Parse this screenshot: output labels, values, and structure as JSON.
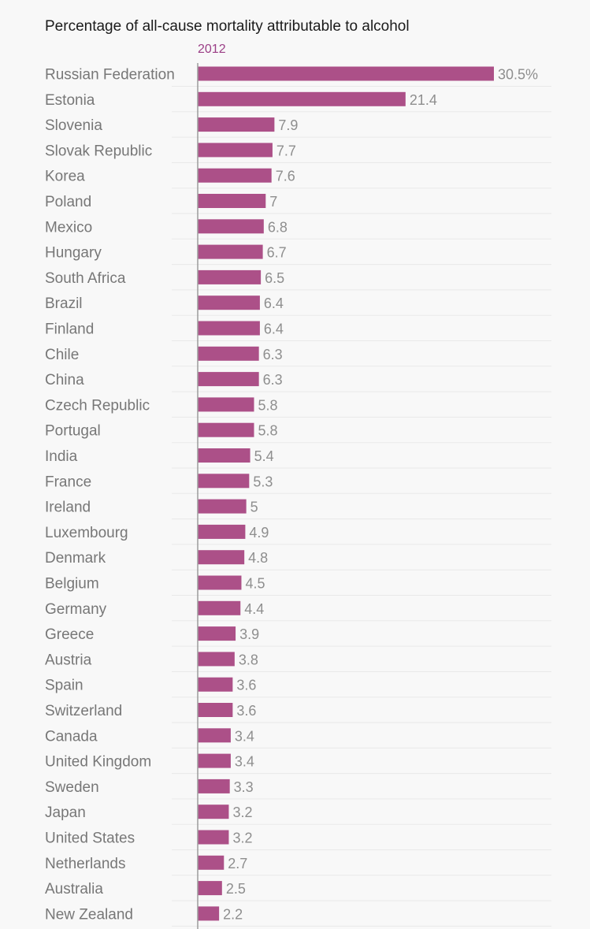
{
  "chart_data": {
    "type": "bar",
    "orientation": "horizontal",
    "title": "Percentage of all-cause mortality attributable to alcohol",
    "series_name": "2012",
    "bar_color": "#ac5088",
    "unit_suffix": "%",
    "xlim": [
      0,
      30.5
    ],
    "categories": [
      "Russian Federation",
      "Estonia",
      "Slovenia",
      "Slovak Republic",
      "Korea",
      "Poland",
      "Mexico",
      "Hungary",
      "South Africa",
      "Brazil",
      "Finland",
      "Chile",
      "China",
      "Czech Republic",
      "Portugal",
      "India",
      "France",
      "Ireland",
      "Luxembourg",
      "Denmark",
      "Belgium",
      "Germany",
      "Greece",
      "Austria",
      "Spain",
      "Switzerland",
      "Canada",
      "United Kingdom",
      "Sweden",
      "Japan",
      "United States",
      "Netherlands",
      "Australia",
      "New Zealand"
    ],
    "values": [
      30.5,
      21.4,
      7.9,
      7.7,
      7.6,
      7,
      6.8,
      6.7,
      6.5,
      6.4,
      6.4,
      6.3,
      6.3,
      5.8,
      5.8,
      5.4,
      5.3,
      5,
      4.9,
      4.8,
      4.5,
      4.4,
      3.9,
      3.8,
      3.6,
      3.6,
      3.4,
      3.4,
      3.3,
      3.2,
      3.2,
      2.7,
      2.5,
      2.2
    ],
    "value_labels": [
      "30.5%",
      "21.4",
      "7.9",
      "7.7",
      "7.6",
      "7",
      "6.8",
      "6.7",
      "6.5",
      "6.4",
      "6.4",
      "6.3",
      "6.3",
      "5.8",
      "5.8",
      "5.4",
      "5.3",
      "5",
      "4.9",
      "4.8",
      "4.5",
      "4.4",
      "3.9",
      "3.8",
      "3.6",
      "3.6",
      "3.4",
      "3.4",
      "3.3",
      "3.2",
      "3.2",
      "2.7",
      "2.5",
      "2.2"
    ]
  }
}
